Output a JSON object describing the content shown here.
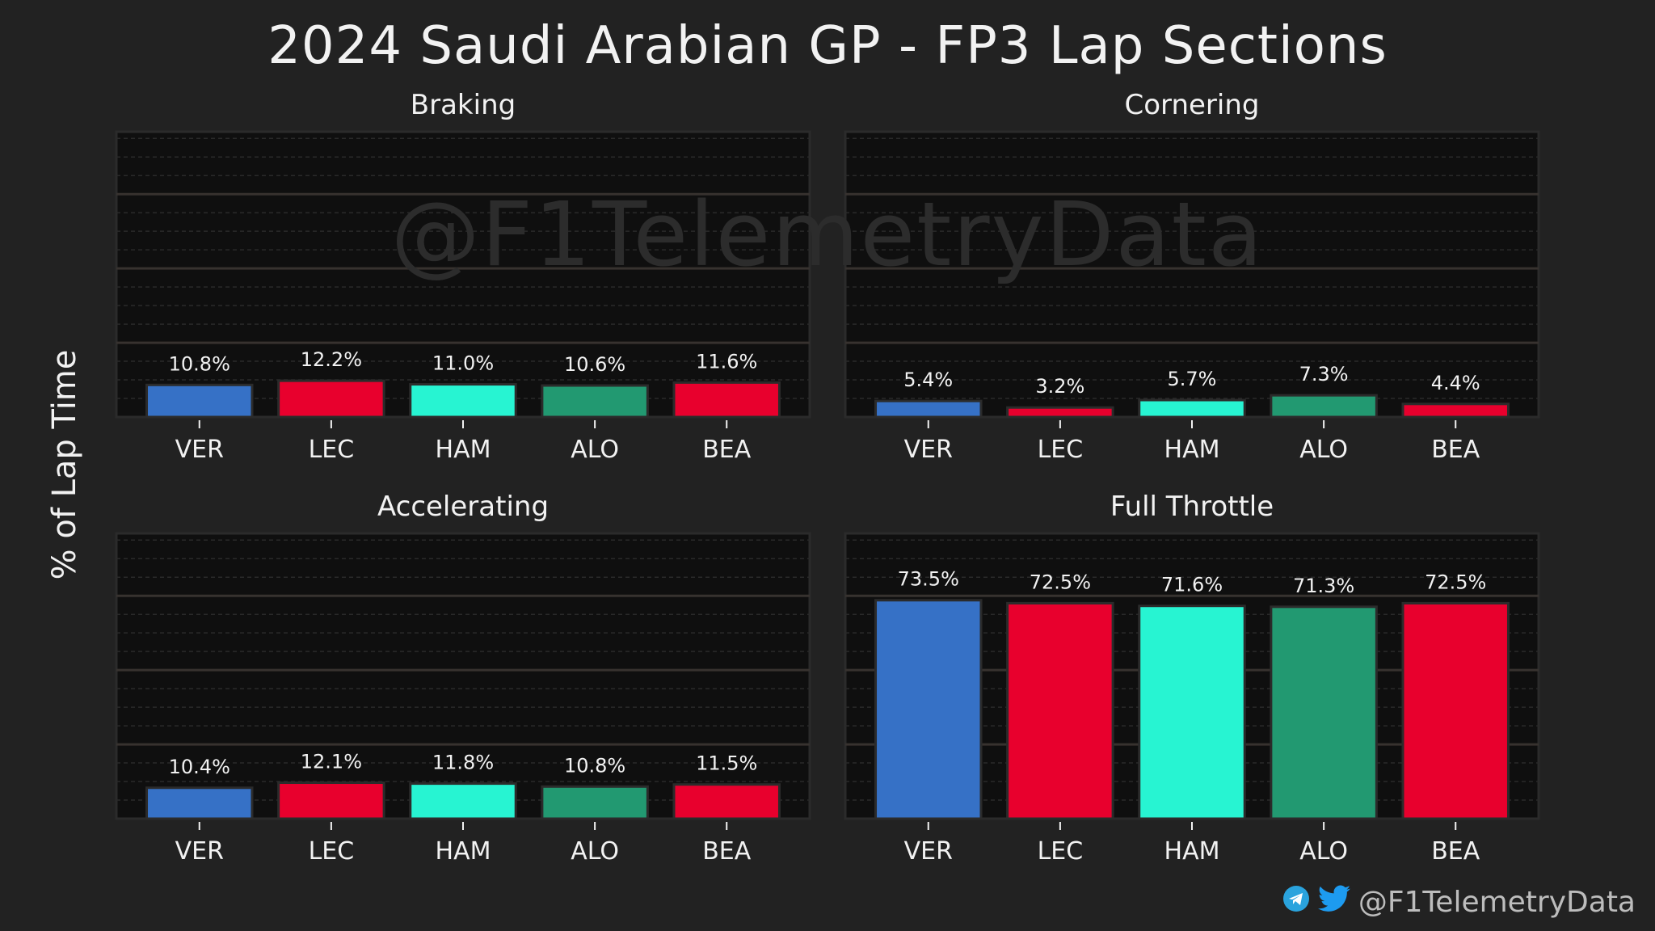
{
  "title": "2024 Saudi Arabian GP - FP3 Lap Sections",
  "ylabel": "% of Lap Time",
  "watermark": "@F1TelemetryData",
  "footer": {
    "handle": "@F1TelemetryData",
    "icons": [
      "telegram-icon",
      "twitter-icon"
    ]
  },
  "colors": {
    "VER": "#3671C6",
    "LEC": "#E8002D",
    "HAM": "#27F4D2",
    "ALO": "#229971",
    "BEA": "#E8002D"
  },
  "chart_data": [
    {
      "type": "bar",
      "title": "Braking",
      "categories": [
        "VER",
        "LEC",
        "HAM",
        "ALO",
        "BEA"
      ],
      "values": [
        10.8,
        12.2,
        11.0,
        10.6,
        11.6
      ],
      "labels": [
        "10.8%",
        "12.2%",
        "11.0%",
        "10.6%",
        "11.6%"
      ],
      "ylim": [
        0,
        96
      ],
      "grid": true
    },
    {
      "type": "bar",
      "title": "Cornering",
      "categories": [
        "VER",
        "LEC",
        "HAM",
        "ALO",
        "BEA"
      ],
      "values": [
        5.4,
        3.2,
        5.7,
        7.3,
        4.4
      ],
      "labels": [
        "5.4%",
        "3.2%",
        "5.7%",
        "7.3%",
        "4.4%"
      ],
      "ylim": [
        0,
        96
      ],
      "grid": true
    },
    {
      "type": "bar",
      "title": "Accelerating",
      "categories": [
        "VER",
        "LEC",
        "HAM",
        "ALO",
        "BEA"
      ],
      "values": [
        10.4,
        12.1,
        11.8,
        10.8,
        11.5
      ],
      "labels": [
        "10.4%",
        "12.1%",
        "11.8%",
        "10.8%",
        "11.5%"
      ],
      "ylim": [
        0,
        96
      ],
      "grid": true
    },
    {
      "type": "bar",
      "title": "Full Throttle",
      "categories": [
        "VER",
        "LEC",
        "HAM",
        "ALO",
        "BEA"
      ],
      "values": [
        73.5,
        72.5,
        71.6,
        71.3,
        72.5
      ],
      "labels": [
        "73.5%",
        "72.5%",
        "71.6%",
        "71.3%",
        "72.5%"
      ],
      "ylim": [
        0,
        96
      ],
      "grid": true
    }
  ]
}
